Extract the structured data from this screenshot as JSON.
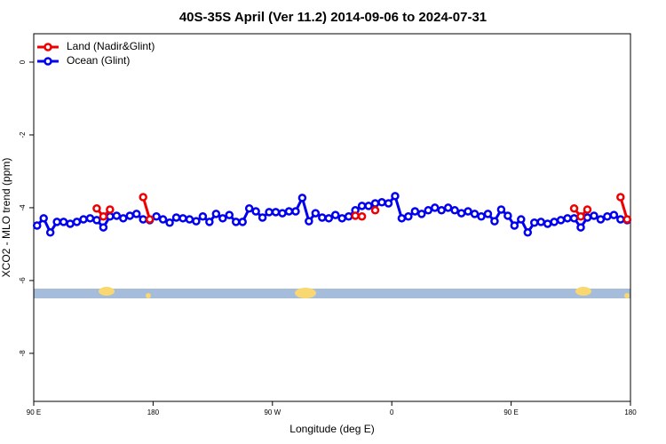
{
  "chart_data": {
    "type": "line",
    "title": "40S-35S April (Ver 11.2)   2014-09-06 to 2024-07-31",
    "x_label": "Longitude (deg E)",
    "y_label": "XCO2 - MLO trend (ppm)",
    "xlim": [
      90,
      540
    ],
    "ylim": [
      -9.32,
      0.78
    ],
    "xticks": [
      {
        "value": 90,
        "label": "90 E"
      },
      180,
      {
        "value": 270,
        "label": "90 W"
      },
      {
        "value": 360,
        "label": "0"
      },
      {
        "value": 450,
        "label": "90 E"
      },
      {
        "value": 540,
        "label": "180"
      }
    ],
    "yticks": [
      0,
      -2,
      -4,
      -6,
      -8
    ],
    "legend": "top-left",
    "series": [
      {
        "name": "Land (Nadir&Glint)",
        "color": "#ee0000",
        "x": [
          137.5,
          142.5,
          147.5,
          152.5,
          172.5,
          177.5,
          182.5,
          332.5,
          337.5,
          342.5,
          347.5,
          352.5,
          497.5,
          502.5,
          507.5,
          512.5,
          532.5,
          537.5
        ],
        "values": [
          -4.02,
          -4.24,
          -4.05,
          null,
          -3.71,
          -4.32,
          null,
          -4.22,
          -4.24,
          null,
          -4.07,
          null,
          -4.02,
          -4.24,
          -4.05,
          null,
          -3.71,
          -4.32
        ]
      },
      {
        "name": "Ocean (Glint)",
        "color": "#0000ee",
        "x": [
          92.5,
          97.5,
          102.5,
          107.5,
          112.5,
          117.5,
          122.5,
          127.5,
          132.5,
          137.5,
          142.5,
          147.5,
          152.5,
          157.5,
          162.5,
          167.5,
          172.5,
          177.5,
          182.5,
          187.5,
          192.5,
          197.5,
          202.5,
          207.5,
          212.5,
          217.5,
          222.5,
          227.5,
          232.5,
          237.5,
          242.5,
          247.5,
          252.5,
          257.5,
          262.5,
          267.5,
          272.5,
          277.5,
          282.5,
          287.5,
          292.5,
          297.5,
          302.5,
          307.5,
          312.5,
          317.5,
          322.5,
          327.5,
          332.5,
          337.5,
          342.5,
          347.5,
          352.5,
          357.5,
          362.5,
          367.5,
          372.5,
          377.5,
          382.5,
          387.5,
          392.5,
          397.5,
          402.5,
          407.5,
          412.5,
          417.5,
          422.5,
          427.5,
          432.5,
          437.5,
          442.5,
          447.5,
          452.5,
          457.5,
          462.5,
          467.5,
          472.5,
          477.5,
          482.5,
          487.5,
          492.5,
          497.5,
          502.5,
          507.5,
          512.5,
          517.5,
          522.5,
          527.5,
          532.5,
          537.5
        ],
        "values": [
          -4.49,
          -4.29,
          -4.68,
          -4.39,
          -4.39,
          -4.44,
          -4.39,
          -4.32,
          -4.29,
          -4.34,
          -4.54,
          -4.24,
          -4.22,
          -4.29,
          -4.22,
          -4.17,
          -4.32,
          -4.34,
          -4.24,
          -4.32,
          -4.41,
          -4.27,
          -4.29,
          -4.32,
          -4.37,
          -4.24,
          -4.39,
          -4.17,
          -4.29,
          -4.2,
          -4.39,
          -4.39,
          -4.02,
          -4.1,
          -4.27,
          -4.12,
          -4.12,
          -4.15,
          -4.1,
          -4.1,
          -3.73,
          -4.37,
          -4.15,
          -4.27,
          -4.29,
          -4.2,
          -4.29,
          -4.24,
          -4.07,
          -3.95,
          -3.95,
          -3.88,
          -3.85,
          -3.88,
          -3.68,
          -4.29,
          -4.24,
          -4.1,
          -4.17,
          -4.07,
          -4.0,
          -4.07,
          -4.0,
          -4.07,
          -4.15,
          -4.1,
          -4.17,
          -4.24,
          -4.17,
          -4.37,
          -4.05,
          -4.22,
          -4.49,
          -4.32,
          -4.68,
          -4.41,
          -4.39,
          -4.44,
          -4.39,
          -4.34,
          -4.29,
          -4.29,
          -4.54,
          -4.27,
          -4.22,
          -4.32,
          -4.24,
          -4.2,
          -4.32,
          -4.34
        ]
      }
    ]
  }
}
